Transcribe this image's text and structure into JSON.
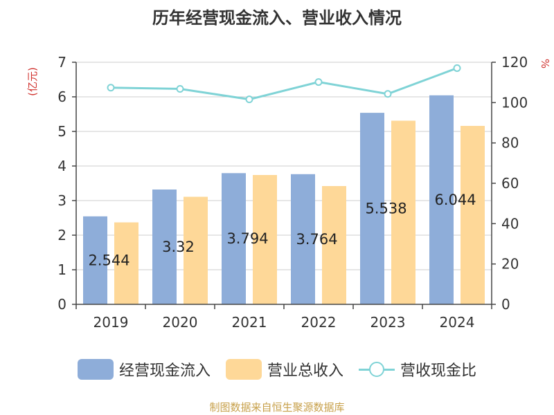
{
  "title": "历年经营现金流入、营业收入情况",
  "source": "制图数据来自恒生聚源数据库",
  "colors": {
    "cash_inflow": "#8eadd9",
    "revenue": "#fed898",
    "ratio": "#7fd3d6",
    "axis_unit": "#d0312d",
    "axis": "#444444",
    "grid": "#cccccc"
  },
  "legend": {
    "items": [
      {
        "label": "经营现金流入",
        "kind": "bar"
      },
      {
        "label": "营业总收入",
        "kind": "bar"
      },
      {
        "label": "营收现金比",
        "kind": "line"
      }
    ]
  },
  "chart_data": {
    "type": "bar",
    "categories": [
      "2019",
      "2020",
      "2021",
      "2022",
      "2023",
      "2024"
    ],
    "series": [
      {
        "name": "经营现金流入",
        "type": "bar",
        "axis": "left",
        "values": [
          2.544,
          3.32,
          3.794,
          3.764,
          5.538,
          6.044
        ],
        "data_labels": [
          "2.544",
          "3.32",
          "3.794",
          "3.764",
          "5.538",
          "6.044"
        ]
      },
      {
        "name": "营业总收入",
        "type": "bar",
        "axis": "left",
        "values": [
          2.37,
          3.11,
          3.74,
          3.42,
          5.31,
          5.16
        ]
      },
      {
        "name": "营收现金比",
        "type": "line",
        "axis": "right",
        "values": [
          107.4,
          106.8,
          101.6,
          110.2,
          104.3,
          117.1
        ]
      }
    ],
    "left_axis": {
      "unit_label": "(亿元)",
      "ylim": [
        0,
        7
      ],
      "ticks": [
        "0",
        "1",
        "2",
        "3",
        "4",
        "5",
        "6",
        "7"
      ]
    },
    "right_axis": {
      "unit_label": "%",
      "ylim": [
        0,
        120
      ],
      "ticks": [
        "0",
        "20",
        "40",
        "60",
        "80",
        "100",
        "120"
      ]
    },
    "grid": true,
    "legend_position": "bottom"
  }
}
